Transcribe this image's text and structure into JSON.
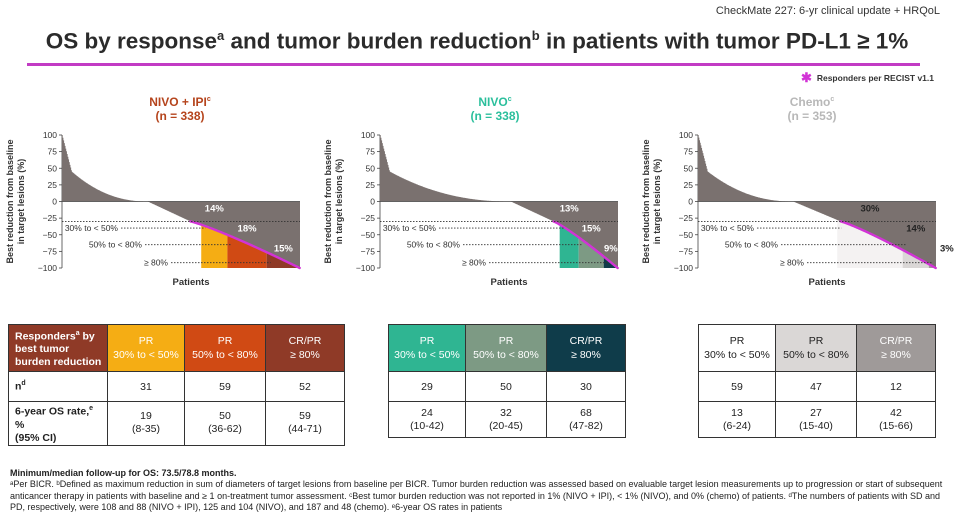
{
  "header": {
    "study_tag": "CheckMate 227: 6-yr clinical update + HRQoL"
  },
  "title": {
    "main_1": "OS by response",
    "sup_1": "a",
    "main_2": " and tumor burden reduction",
    "sup_2": "b",
    "main_3": " in patients with tumor PD-L1 ≥ 1%"
  },
  "legend": {
    "label": "Responders per RECIST v1.1",
    "color": "#d233d6"
  },
  "chart_data": [
    {
      "type": "bar",
      "arm": "NIVO + IPI",
      "arm_sup": "c",
      "n_label": "(n = 338)",
      "title_color": "#b5441c",
      "ylabel": "Best reduction from baseline in target lesions (%)",
      "xlabel": "Patients",
      "yticks": [
        "100",
        "75",
        "50",
        "25",
        "0",
        "−25",
        "−50",
        "−75",
        "−100"
      ],
      "ylim": [
        -100,
        100
      ],
      "threshold": -30,
      "n_patients": 338,
      "segment_labels": [
        "30% to < 50%",
        "50% to < 80%",
        "≥ 80%"
      ],
      "bands": [
        {
          "from_pct": 0.585,
          "to_pct": 0.695,
          "color": "#f5ad14",
          "label": "14%",
          "label_color": "#ffffff"
        },
        {
          "from_pct": 0.695,
          "to_pct": 0.86,
          "color": "#d04a14",
          "label": "18%",
          "label_color": "#ffffff"
        },
        {
          "from_pct": 0.86,
          "to_pct": 1.0,
          "color": "#8f3a27",
          "label": "15%",
          "label_color": "#ffffff"
        }
      ],
      "responder_start_pct": 0.54
    },
    {
      "type": "bar",
      "arm": "NIVO",
      "arm_sup": "c",
      "n_label": "(n = 338)",
      "title_color": "#2bbf9c",
      "ylabel": "Best reduction from baseline in target lesions (%)",
      "xlabel": "Patients",
      "yticks": [
        "100",
        "75",
        "50",
        "25",
        "0",
        "−25",
        "−50",
        "−75",
        "−100"
      ],
      "ylim": [
        -100,
        100
      ],
      "threshold": -30,
      "n_patients": 338,
      "segment_labels": [
        "30% to < 50%",
        "50% to < 80%",
        "≥ 80%"
      ],
      "bands": [
        {
          "from_pct": 0.755,
          "to_pct": 0.835,
          "color": "#2fb592",
          "label": "13%",
          "label_color": "#ffffff"
        },
        {
          "from_pct": 0.835,
          "to_pct": 0.94,
          "color": "#7d9a84",
          "label": "15%",
          "label_color": "#ffffff"
        },
        {
          "from_pct": 0.94,
          "to_pct": 1.0,
          "color": "#0f3c4a",
          "label": "9%",
          "label_color": "#ffffff"
        }
      ],
      "responder_start_pct": 0.73
    },
    {
      "type": "bar",
      "arm": "Chemo",
      "arm_sup": "c",
      "n_label": "(n = 353)",
      "title_color": "#b8b8b8",
      "ylabel": "Best reduction from baseline in target lesions (%)",
      "xlabel": "Patients",
      "yticks": [
        "100",
        "75",
        "50",
        "25",
        "0",
        "−25",
        "−50",
        "−75",
        "−100"
      ],
      "ylim": [
        -100,
        100
      ],
      "threshold": -30,
      "n_patients": 353,
      "segment_labels": [
        "30% to < 50%",
        "50% to < 80%",
        "≥ 80%"
      ],
      "bands": [
        {
          "from_pct": 0.585,
          "to_pct": 0.86,
          "color": "#f4f2f2",
          "label": "30%",
          "label_color": "#222222"
        },
        {
          "from_pct": 0.86,
          "to_pct": 0.97,
          "color": "#dad7d6",
          "label": "14%",
          "label_color": "#222222"
        },
        {
          "from_pct": 0.97,
          "to_pct": 1.0,
          "color": "#9f9a99",
          "label": "3%",
          "label_color": "#222222"
        }
      ],
      "responder_start_pct": 0.6
    }
  ],
  "tables": {
    "row_header": {
      "line1": "Responders",
      "sup1": "a",
      "line1b": " by",
      "line2": "best tumor",
      "line3": "burden reduction"
    },
    "row_n": {
      "label": "n",
      "sup": "d"
    },
    "row_os": {
      "label_1": "6-year OS rate,",
      "sup": "e",
      "label_2": " %",
      "label_3": "(95% CI)"
    },
    "arms": [
      {
        "cols": [
          {
            "h1": "PR",
            "h2": "30% to < 50%",
            "bg": "#f5ad14",
            "fg": "#ffffff",
            "n": "31",
            "os": "19",
            "ci": "(8-35)"
          },
          {
            "h1": "PR",
            "h2": "50% to < 80%",
            "bg": "#d04a14",
            "fg": "#ffffff",
            "n": "59",
            "os": "50",
            "ci": "(36-62)"
          },
          {
            "h1": "CR/PR",
            "h2": "≥ 80%",
            "bg": "#8f3a27",
            "fg": "#ffffff",
            "n": "52",
            "os": "59",
            "ci": "(44-71)"
          }
        ]
      },
      {
        "cols": [
          {
            "h1": "PR",
            "h2": "30% to < 50%",
            "bg": "#2fb592",
            "fg": "#ffffff",
            "n": "29",
            "os": "24",
            "ci": "(10-42)"
          },
          {
            "h1": "PR",
            "h2": "50% to < 80%",
            "bg": "#7d9a84",
            "fg": "#ffffff",
            "n": "50",
            "os": "32",
            "ci": "(20-45)"
          },
          {
            "h1": "CR/PR",
            "h2": "≥ 80%",
            "bg": "#0f3c4a",
            "fg": "#ffffff",
            "n": "30",
            "os": "68",
            "ci": "(47-82)"
          }
        ]
      },
      {
        "cols": [
          {
            "h1": "PR",
            "h2": "30% to < 50%",
            "bg": "#ffffff",
            "fg": "#222222",
            "n": "59",
            "os": "13",
            "ci": "(6-24)"
          },
          {
            "h1": "PR",
            "h2": "50% to < 80%",
            "bg": "#dad7d6",
            "fg": "#222222",
            "n": "47",
            "os": "27",
            "ci": "(15-40)"
          },
          {
            "h1": "CR/PR",
            "h2": "≥ 80%",
            "bg": "#9f9a99",
            "fg": "#ffffff",
            "n": "12",
            "os": "42",
            "ci": "(15-66)"
          }
        ]
      }
    ]
  },
  "footnotes": {
    "followup": "Minimum/median follow-up for OS: 73.5/78.8 months.",
    "text": "ᵃPer BICR. ᵇDefined as maximum reduction in sum of diameters of target lesions from baseline per BICR. Tumor burden reduction was assessed based on evaluable target lesion measurements up to progression or start of subsequent anticancer therapy in patients with baseline and ≥ 1 on-treatment tumor assessment. ᶜBest tumor burden reduction was not reported in 1% (NIVO + IPI), < 1% (NIVO), and 0% (chemo) of patients. ᵈThe numbers of patients with SD and PD, respectively, were 108 and 88 (NIVO + IPI), 125 and 104 (NIVO), and 187 and 48 (chemo). ᵉ6-year OS rates in patients"
  }
}
